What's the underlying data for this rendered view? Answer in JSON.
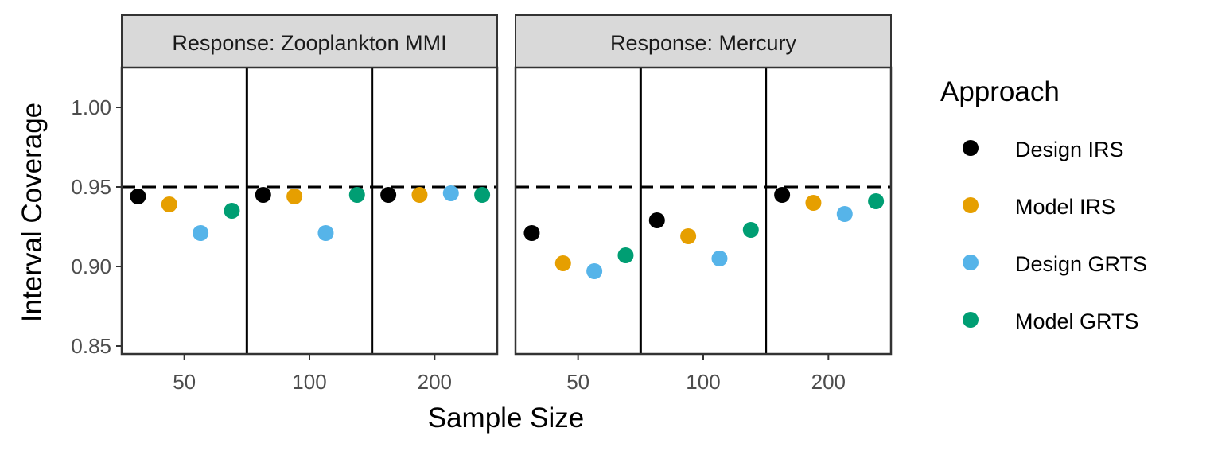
{
  "chart_data": {
    "type": "scatter",
    "xlabel": "Sample Size",
    "ylabel": "Interval Coverage",
    "ylim": [
      0.845,
      1.025
    ],
    "y_ticks": [
      "0.85",
      "0.90",
      "0.95",
      "1.00"
    ],
    "y_tick_values": [
      0.85,
      0.9,
      0.95,
      1.0
    ],
    "reference_line": 0.95,
    "sample_sizes": [
      "50",
      "100",
      "200"
    ],
    "legend": {
      "title": "Approach",
      "position": "right",
      "items": [
        {
          "label": "Design IRS",
          "color": "#000000"
        },
        {
          "label": "Model IRS",
          "color": "#E69F00"
        },
        {
          "label": "Design GRTS",
          "color": "#56B4E9"
        },
        {
          "label": "Model GRTS",
          "color": "#009E73"
        }
      ]
    },
    "panels": [
      {
        "title": "Response: Zooplankton MMI",
        "groups": [
          {
            "sample_size": "50",
            "values": [
              0.944,
              0.939,
              0.921,
              0.935
            ]
          },
          {
            "sample_size": "100",
            "values": [
              0.945,
              0.944,
              0.921,
              0.945
            ]
          },
          {
            "sample_size": "200",
            "values": [
              0.945,
              0.945,
              0.946,
              0.945
            ]
          }
        ]
      },
      {
        "title": "Response: Mercury",
        "groups": [
          {
            "sample_size": "50",
            "values": [
              0.921,
              0.902,
              0.897,
              0.907
            ]
          },
          {
            "sample_size": "100",
            "values": [
              0.929,
              0.919,
              0.905,
              0.923
            ]
          },
          {
            "sample_size": "200",
            "values": [
              0.945,
              0.94,
              0.933,
              0.941
            ]
          }
        ]
      }
    ]
  }
}
